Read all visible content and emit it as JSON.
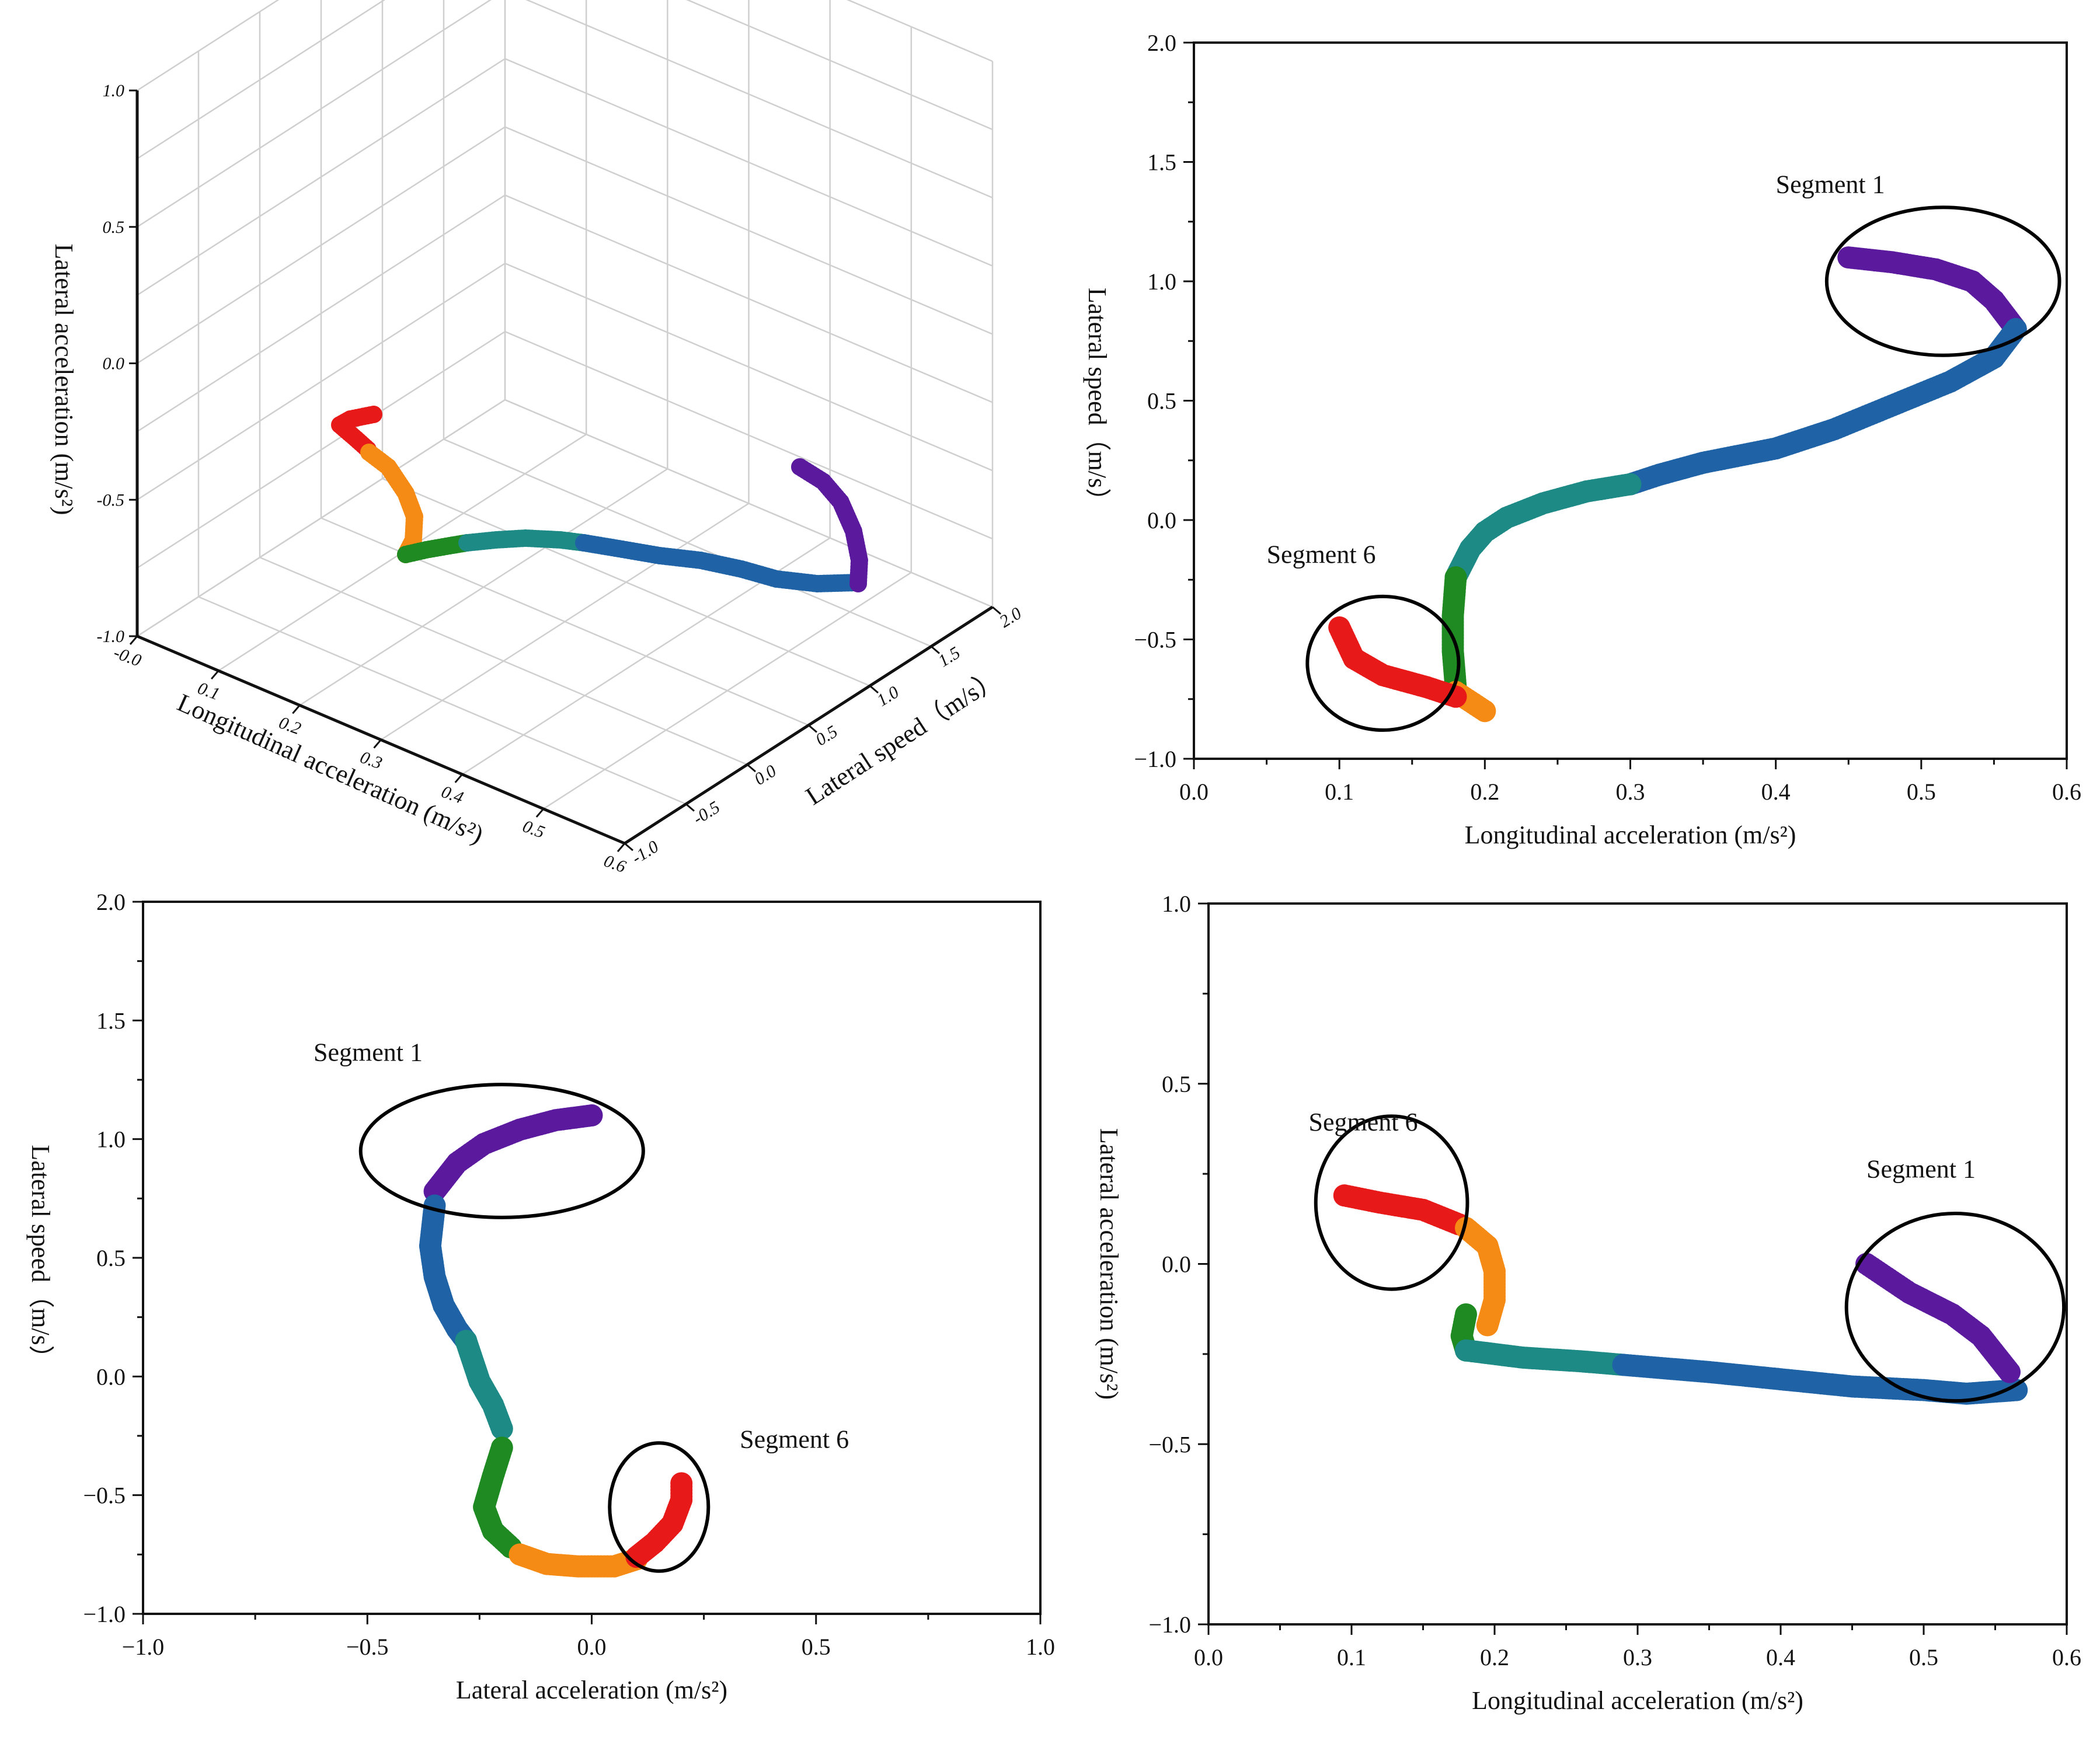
{
  "colors": {
    "purple": "#5B1A9E",
    "blue": "#1F63A6",
    "teal": "#1E8A86",
    "green": "#1F8A22",
    "orange": "#F58A14",
    "red": "#E81919",
    "axis": "#111111",
    "grid": "#cfcfcf"
  },
  "chart_data": [
    {
      "id": "panel-3d",
      "type": "scatter",
      "projection": "3d",
      "title": "",
      "xlabel": "Longitudinal acceleration (m/s²)",
      "ylabel": "Lateral speed（m/s）",
      "zlabel": "Lateral acceleration (m/s²)",
      "xlim": [
        0.0,
        0.6
      ],
      "ylim": [
        -1.0,
        2.0
      ],
      "zlim": [
        -1.0,
        1.0
      ],
      "x_ticks": [
        "-0.0",
        "0.1",
        "0.2",
        "0.3",
        "0.4",
        "0.5",
        "0.6"
      ],
      "y_ticks": [
        "-1.0",
        "-0.5",
        "0.0",
        "0.5",
        "1.0",
        "1.5",
        "2.0"
      ],
      "z_ticks": [
        "-1.0",
        "-0.5",
        "0.0",
        "0.5",
        "1.0"
      ],
      "grid": true
    },
    {
      "id": "panel-tr",
      "type": "scatter",
      "title": "",
      "xlabel": "Longitudinal acceleration (m/s²)",
      "ylabel": "Lateral speed（m/s）",
      "xlim": [
        0.0,
        0.6
      ],
      "ylim": [
        -1.0,
        2.0
      ],
      "x_ticks": [
        "0.0",
        "0.1",
        "0.2",
        "0.3",
        "0.4",
        "0.5",
        "0.6"
      ],
      "y_ticks": [
        "−1.0",
        "−0.5",
        "0.0",
        "0.5",
        "1.0",
        "1.5",
        "2.0"
      ],
      "series": [
        {
          "name": "purple",
          "x": [
            0.45,
            0.48,
            0.51,
            0.535,
            0.55,
            0.565
          ],
          "y": [
            1.1,
            1.08,
            1.05,
            1.0,
            0.92,
            0.8
          ]
        },
        {
          "name": "blue",
          "x": [
            0.565,
            0.55,
            0.52,
            0.48,
            0.44,
            0.4,
            0.35,
            0.32,
            0.3
          ],
          "y": [
            0.8,
            0.68,
            0.58,
            0.48,
            0.38,
            0.3,
            0.24,
            0.19,
            0.15
          ]
        },
        {
          "name": "teal",
          "x": [
            0.3,
            0.27,
            0.24,
            0.215,
            0.2,
            0.19,
            0.18
          ],
          "y": [
            0.15,
            0.12,
            0.07,
            0.01,
            -0.05,
            -0.12,
            -0.24
          ]
        },
        {
          "name": "green",
          "x": [
            0.18,
            0.178,
            0.178,
            0.18
          ],
          "y": [
            -0.24,
            -0.4,
            -0.55,
            -0.7
          ]
        },
        {
          "name": "orange",
          "x": [
            0.18,
            0.19,
            0.2
          ],
          "y": [
            -0.72,
            -0.76,
            -0.8
          ]
        },
        {
          "name": "red",
          "x": [
            0.1,
            0.11,
            0.13,
            0.16,
            0.18
          ],
          "y": [
            -0.45,
            -0.58,
            -0.65,
            -0.7,
            -0.74
          ]
        }
      ],
      "annotations": [
        {
          "text": "Segment 1",
          "x": 0.4,
          "y": 1.37
        },
        {
          "text": "Segment 6",
          "x": 0.05,
          "y": -0.18
        }
      ],
      "ellipses": [
        {
          "cx": 0.515,
          "cy": 1.0,
          "rx": 0.08,
          "ry": 0.31
        },
        {
          "cx": 0.13,
          "cy": -0.6,
          "rx": 0.052,
          "ry": 0.28
        }
      ]
    },
    {
      "id": "panel-bl",
      "type": "scatter",
      "title": "",
      "xlabel": "Lateral acceleration (m/s²)",
      "ylabel": "Lateral speed（m/s）",
      "xlim": [
        -1.0,
        1.0
      ],
      "ylim": [
        -1.0,
        2.0
      ],
      "x_ticks": [
        "−1.0",
        "−0.5",
        "0.0",
        "0.5",
        "1.0"
      ],
      "y_ticks": [
        "−1.0",
        "−0.5",
        "0.0",
        "0.5",
        "1.0",
        "1.5",
        "2.0"
      ],
      "series": [
        {
          "name": "purple",
          "x": [
            0.0,
            -0.08,
            -0.16,
            -0.24,
            -0.3,
            -0.35
          ],
          "y": [
            1.1,
            1.08,
            1.04,
            0.98,
            0.9,
            0.78
          ]
        },
        {
          "name": "blue",
          "x": [
            -0.35,
            -0.36,
            -0.35,
            -0.33,
            -0.3,
            -0.28
          ],
          "y": [
            0.72,
            0.55,
            0.42,
            0.3,
            0.2,
            0.15
          ]
        },
        {
          "name": "teal",
          "x": [
            -0.28,
            -0.25,
            -0.22,
            -0.2
          ],
          "y": [
            0.15,
            -0.02,
            -0.12,
            -0.22
          ]
        },
        {
          "name": "green",
          "x": [
            -0.2,
            -0.22,
            -0.24,
            -0.22,
            -0.18
          ],
          "y": [
            -0.3,
            -0.42,
            -0.55,
            -0.65,
            -0.72
          ]
        },
        {
          "name": "orange",
          "x": [
            -0.16,
            -0.1,
            -0.03,
            0.05,
            0.1
          ],
          "y": [
            -0.75,
            -0.79,
            -0.8,
            -0.8,
            -0.77
          ]
        },
        {
          "name": "red",
          "x": [
            0.1,
            0.14,
            0.18,
            0.2,
            0.2
          ],
          "y": [
            -0.76,
            -0.7,
            -0.62,
            -0.52,
            -0.45
          ]
        }
      ],
      "annotations": [
        {
          "text": "Segment 1",
          "x": -0.62,
          "y": 1.33
        },
        {
          "text": "Segment 6",
          "x": 0.33,
          "y": -0.3
        }
      ],
      "ellipses": [
        {
          "cx": -0.2,
          "cy": 0.95,
          "rx": 0.315,
          "ry": 0.28
        },
        {
          "cx": 0.15,
          "cy": -0.55,
          "rx": 0.11,
          "ry": 0.27
        }
      ]
    },
    {
      "id": "panel-br",
      "type": "scatter",
      "title": "",
      "xlabel": "Longitudinal acceleration (m/s²)",
      "ylabel": "Lateral acceleration (m/s²)",
      "xlim": [
        0.0,
        0.6
      ],
      "ylim": [
        -1.0,
        1.0
      ],
      "x_ticks": [
        "0.0",
        "0.1",
        "0.2",
        "0.3",
        "0.4",
        "0.5",
        "0.6"
      ],
      "y_ticks": [
        "−1.0",
        "−0.5",
        "0.0",
        "0.5",
        "1.0"
      ],
      "series": [
        {
          "name": "red",
          "x": [
            0.095,
            0.12,
            0.15,
            0.175
          ],
          "y": [
            0.19,
            0.17,
            0.15,
            0.11
          ]
        },
        {
          "name": "orange",
          "x": [
            0.18,
            0.195,
            0.2,
            0.2,
            0.195
          ],
          "y": [
            0.1,
            0.05,
            -0.02,
            -0.1,
            -0.17
          ]
        },
        {
          "name": "green",
          "x": [
            0.18,
            0.177,
            0.18
          ],
          "y": [
            -0.14,
            -0.2,
            -0.24
          ]
        },
        {
          "name": "teal",
          "x": [
            0.18,
            0.22,
            0.26,
            0.29
          ],
          "y": [
            -0.24,
            -0.26,
            -0.27,
            -0.28
          ]
        },
        {
          "name": "blue",
          "x": [
            0.29,
            0.35,
            0.4,
            0.45,
            0.5,
            0.53,
            0.565
          ],
          "y": [
            -0.28,
            -0.3,
            -0.32,
            -0.34,
            -0.35,
            -0.36,
            -0.35
          ]
        },
        {
          "name": "purple",
          "x": [
            0.46,
            0.49,
            0.52,
            0.54,
            0.56
          ],
          "y": [
            0.0,
            -0.08,
            -0.14,
            -0.2,
            -0.3
          ]
        }
      ],
      "annotations": [
        {
          "text": "Segment 6",
          "x": 0.07,
          "y": 0.37
        },
        {
          "text": "Segment 1",
          "x": 0.46,
          "y": 0.24
        }
      ],
      "ellipses": [
        {
          "cx": 0.128,
          "cy": 0.17,
          "rx": 0.053,
          "ry": 0.24
        },
        {
          "cx": 0.522,
          "cy": -0.12,
          "rx": 0.076,
          "ry": 0.26
        }
      ]
    }
  ],
  "hud_placeholder": null
}
